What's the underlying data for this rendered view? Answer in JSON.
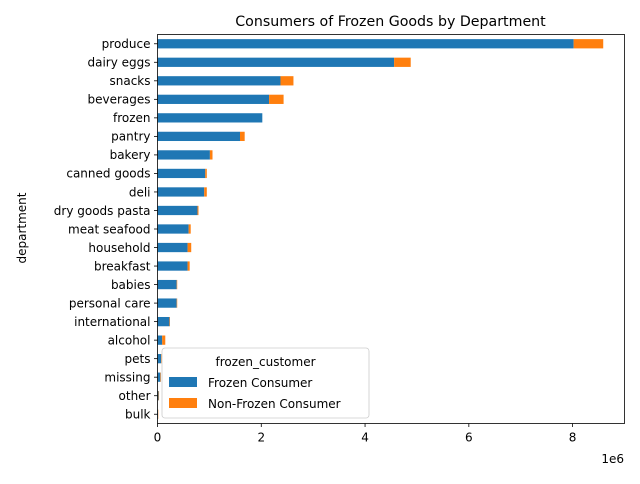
{
  "chart_data": {
    "type": "bar",
    "orientation": "horizontal",
    "stacked": true,
    "title": "Consumers of Frozen Goods by Department",
    "xlabel": "",
    "ylabel": "department",
    "x_scale_label": "1e6",
    "xlim": [
      0,
      9000000
    ],
    "xticks": [
      0,
      2000000,
      4000000,
      6000000,
      8000000
    ],
    "xtick_labels": [
      "0",
      "2",
      "4",
      "6",
      "8"
    ],
    "grid": false,
    "categories": [
      "produce",
      "dairy eggs",
      "snacks",
      "beverages",
      "frozen",
      "pantry",
      "bakery",
      "canned goods",
      "deli",
      "dry goods pasta",
      "meat seafood",
      "household",
      "breakfast",
      "babies",
      "personal care",
      "international",
      "alcohol",
      "pets",
      "missing",
      "other",
      "bulk"
    ],
    "series": [
      {
        "name": "Frozen Consumer",
        "color": "#1f77b4",
        "values": [
          8020000,
          4560000,
          2370000,
          2150000,
          2020000,
          1590000,
          1010000,
          920000,
          900000,
          770000,
          600000,
          580000,
          580000,
          370000,
          370000,
          230000,
          90000,
          70000,
          55000,
          20000,
          10000
        ]
      },
      {
        "name": "Non-Frozen Consumer",
        "color": "#ff7f0e",
        "values": [
          570000,
          320000,
          250000,
          280000,
          0,
          90000,
          50000,
          30000,
          50000,
          20000,
          40000,
          70000,
          40000,
          10000,
          10000,
          10000,
          60000,
          10000,
          10000,
          10000,
          5000
        ]
      }
    ],
    "legend": {
      "title": "frozen_customer",
      "position": "lower center",
      "entries": [
        "Frozen Consumer",
        "Non-Frozen Consumer"
      ]
    }
  }
}
